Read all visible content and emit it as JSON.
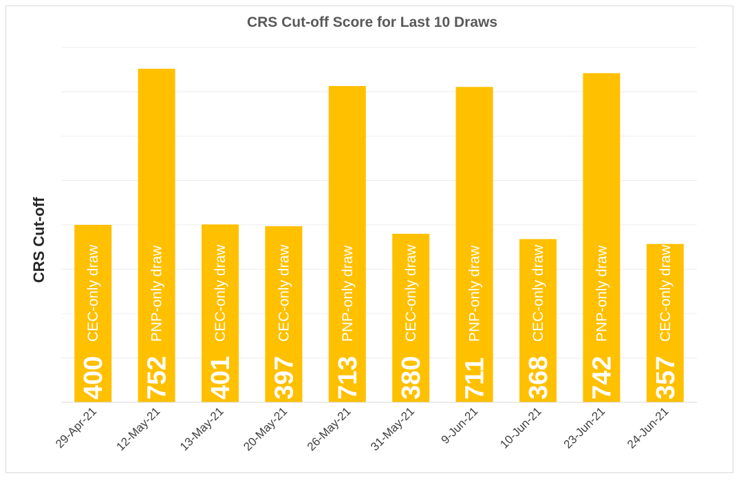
{
  "chart_data": {
    "type": "bar",
    "title": "CRS Cut-off Score for Last 10 Draws",
    "xlabel": "",
    "ylabel": "CRS Cut-off",
    "categories": [
      "29-Apr-21",
      "12-May-21",
      "13-May-21",
      "20-May-21",
      "26-May-21",
      "31-May-21",
      "9-Jun-21",
      "10-Jun-21",
      "23-Jun-21",
      "24-Jun-21"
    ],
    "values": [
      400,
      752,
      401,
      397,
      713,
      380,
      711,
      368,
      742,
      357
    ],
    "bar_labels": [
      "CEC-only draw",
      "PNP-only draw",
      "CEC-only draw",
      "CEC-only draw",
      "PNP-only draw",
      "CEC-only draw",
      "PNP-only draw",
      "CEC-only draw",
      "PNP-only draw",
      "CEC-only draw"
    ],
    "ylim": [
      0,
      800
    ],
    "grid": true,
    "legend": "none",
    "bar_color": "#FFC000"
  }
}
